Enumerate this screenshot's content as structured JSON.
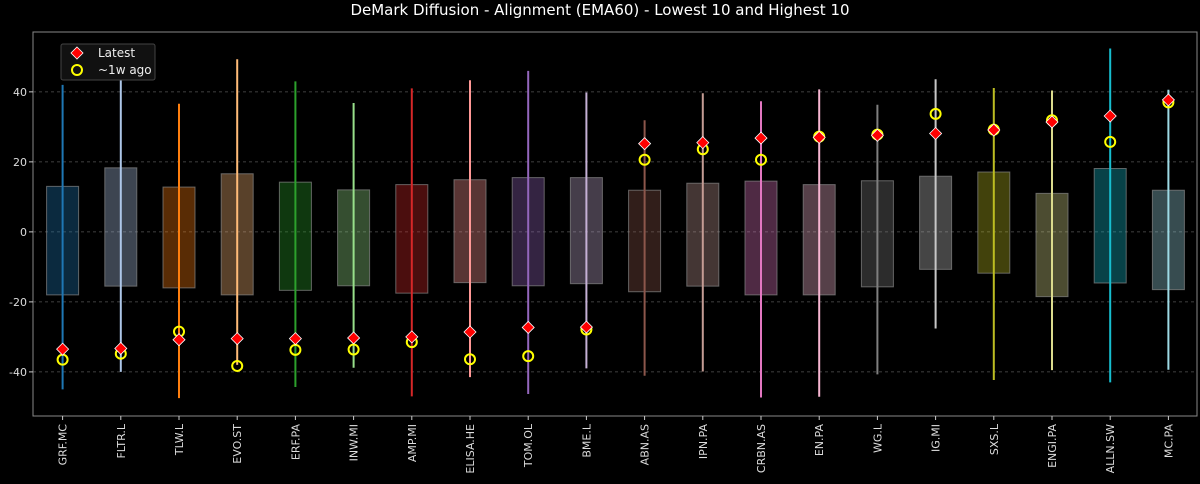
{
  "chart_data": {
    "type": "box",
    "title": "DeMark Diffusion - Alignment (EMA60) - Lowest 10 and Highest 10",
    "xlabel": "",
    "ylabel": "",
    "ylim": [
      -52.6,
      57.1
    ],
    "yticks": [
      -40,
      -20,
      0,
      20,
      40
    ],
    "grid": true,
    "legend_placement": "top-left",
    "legend": [
      {
        "label": "Latest",
        "marker": "diamond",
        "color": "#ff0000"
      },
      {
        "label": "~1w ago",
        "marker": "open-circle",
        "color": "#ffff00"
      }
    ],
    "categories": [
      "GRF.MC",
      "FLTR.L",
      "TLW.L",
      "EVO.ST",
      "ERF.PA",
      "INW.MI",
      "AMP.MI",
      "ELISA.HE",
      "TOM.OL",
      "BME.L",
      "ABN.AS",
      "IPN.PA",
      "CRBN.AS",
      "EN.PA",
      "WG.L",
      "IG.MI",
      "SXS.L",
      "ENGI.PA",
      "ALLN.SW",
      "MC.PA"
    ],
    "colors": [
      "#1f77b4",
      "#aec7e8",
      "#ff7f0e",
      "#ffbb78",
      "#2ca02c",
      "#98df8a",
      "#d62728",
      "#ff9896",
      "#9467bd",
      "#c5b0d5",
      "#8c564b",
      "#c49c94",
      "#e377c2",
      "#f7b6d2",
      "#7f7f7f",
      "#c7c7c7",
      "#bcbd22",
      "#dbdb8d",
      "#17becf",
      "#9edae5"
    ],
    "whisker_high": [
      42,
      45,
      36.6,
      49.3,
      43,
      36.8,
      41,
      43.3,
      46,
      39.8,
      31.9,
      39.6,
      37.3,
      40.7,
      36.3,
      43.6,
      41.1,
      40.4,
      52.4,
      40.6
    ],
    "whisker_low": [
      -45,
      -40,
      -47.5,
      -38,
      -44.3,
      -38.8,
      -47,
      -41.5,
      -46.3,
      -39,
      -41.1,
      -39.9,
      -47.3,
      -47.1,
      -40.7,
      -27.6,
      -42.3,
      -39.5,
      -43,
      -39.4
    ],
    "box_high": [
      13,
      18.3,
      12.8,
      16.6,
      14.2,
      12,
      13.5,
      14.9,
      15.5,
      15.5,
      11.9,
      13.9,
      14.5,
      13.5,
      14.6,
      15.9,
      17.1,
      11,
      18.1,
      11.9
    ],
    "box_low": [
      -18,
      -15.5,
      -16,
      -18,
      -16.7,
      -15.4,
      -17.5,
      -14.5,
      -15.4,
      -14.8,
      -17.1,
      -15.5,
      -18,
      -18,
      -15.7,
      -10.7,
      -11.8,
      -18.5,
      -14.6,
      -16.5
    ],
    "latest": [
      -33.5,
      -33.3,
      -30.8,
      -30.5,
      -30.5,
      -30.3,
      -30,
      -28.6,
      -27.3,
      -27.2,
      25.2,
      25.5,
      26.8,
      27,
      27.6,
      28.1,
      29.1,
      31.4,
      33.1,
      37.7
    ],
    "week_ago": [
      -36.5,
      -34.8,
      -28.5,
      -38.3,
      -33.7,
      -33.6,
      -31.5,
      -36.4,
      -35.5,
      -27.9,
      20.6,
      23.6,
      20.6,
      27.2,
      27.8,
      33.7,
      29.2,
      31.9,
      25.7,
      37
    ]
  }
}
